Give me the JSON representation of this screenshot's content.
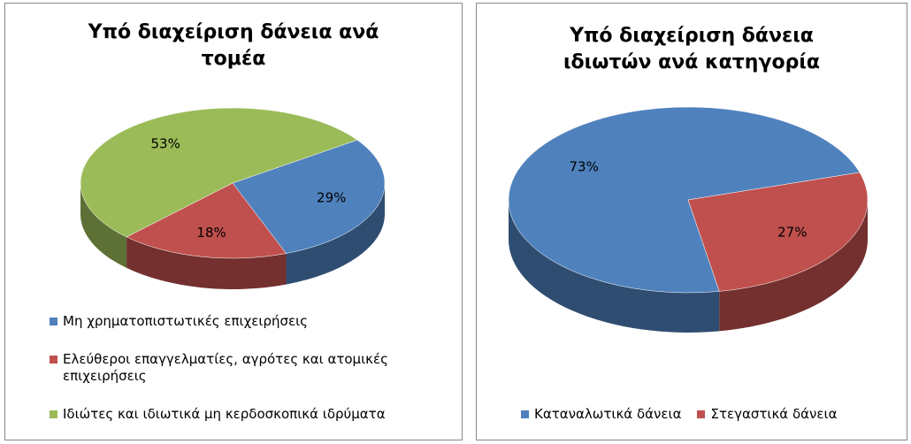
{
  "chart_data": [
    {
      "type": "pie",
      "title": "Υπό διαχείριση δάνεια ανά τομέα",
      "series": [
        {
          "name": "Μη χρηματοπιστωτικές επιχειρήσεις",
          "color": "#4f81bd",
          "values": [
            29
          ],
          "value_labels": [
            "29%"
          ]
        },
        {
          "name": "Ελεύθεροι επαγγελματίες, αγρότες και ατομικές επιχειρήσεις",
          "color": "#c0504d",
          "values": [
            18
          ],
          "value_labels": [
            "18%"
          ]
        },
        {
          "name": "Ιδιώτες και ιδιωτικά μη κερδοσκοπικά ιδρύματα",
          "color": "#9bbb59",
          "values": [
            53
          ],
          "value_labels": [
            "53%"
          ]
        }
      ],
      "legend": "bottom-vertical"
    },
    {
      "type": "pie",
      "title": "Υπό διαχείριση δάνεια ιδιωτών ανά κατηγορία",
      "series": [
        {
          "name": "Καταναλωτικά δάνεια",
          "color": "#4f81bd",
          "values": [
            73
          ],
          "value_labels": [
            "73%"
          ]
        },
        {
          "name": "Στεγαστικά δάνεια",
          "color": "#c0504d",
          "values": [
            27
          ],
          "value_labels": [
            "27%"
          ]
        }
      ],
      "legend": "bottom-horizontal"
    }
  ]
}
